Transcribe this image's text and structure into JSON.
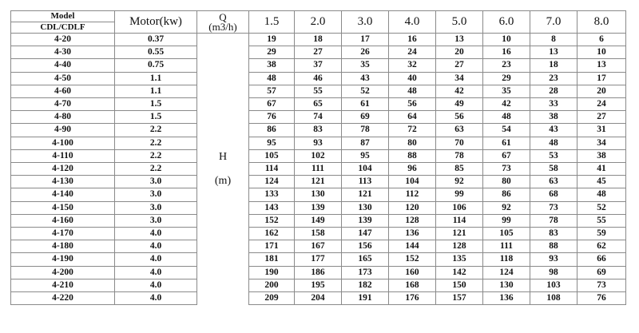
{
  "header": {
    "model_label": "Model",
    "series_label": "CDL/CDLF",
    "motor_label": "Motor(kw)",
    "q_label": "Q",
    "q_unit": "(m3/h)",
    "h_label": "H",
    "h_unit": "(m)",
    "flows": [
      "1.5",
      "2.0",
      "3.0",
      "4.0",
      "5.0",
      "6.0",
      "7.0",
      "8.0"
    ]
  },
  "rows": [
    {
      "model": "4-20",
      "motor": "0.37",
      "h": [
        "19",
        "18",
        "17",
        "16",
        "13",
        "10",
        "8",
        "6"
      ]
    },
    {
      "model": "4-30",
      "motor": "0.55",
      "h": [
        "29",
        "27",
        "26",
        "24",
        "20",
        "16",
        "13",
        "10"
      ]
    },
    {
      "model": "4-40",
      "motor": "0.75",
      "h": [
        "38",
        "37",
        "35",
        "32",
        "27",
        "23",
        "18",
        "13"
      ]
    },
    {
      "model": "4-50",
      "motor": "1.1",
      "h": [
        "48",
        "46",
        "43",
        "40",
        "34",
        "29",
        "23",
        "17"
      ]
    },
    {
      "model": "4-60",
      "motor": "1.1",
      "h": [
        "57",
        "55",
        "52",
        "48",
        "42",
        "35",
        "28",
        "20"
      ]
    },
    {
      "model": "4-70",
      "motor": "1.5",
      "h": [
        "67",
        "65",
        "61",
        "56",
        "49",
        "42",
        "33",
        "24"
      ]
    },
    {
      "model": "4-80",
      "motor": "1.5",
      "h": [
        "76",
        "74",
        "69",
        "64",
        "56",
        "48",
        "38",
        "27"
      ]
    },
    {
      "model": "4-90",
      "motor": "2.2",
      "h": [
        "86",
        "83",
        "78",
        "72",
        "63",
        "54",
        "43",
        "31"
      ]
    },
    {
      "model": "4-100",
      "motor": "2.2",
      "h": [
        "95",
        "93",
        "87",
        "80",
        "70",
        "61",
        "48",
        "34"
      ]
    },
    {
      "model": "4-110",
      "motor": "2.2",
      "h": [
        "105",
        "102",
        "95",
        "88",
        "78",
        "67",
        "53",
        "38"
      ]
    },
    {
      "model": "4-120",
      "motor": "2.2",
      "h": [
        "114",
        "111",
        "104",
        "96",
        "85",
        "73",
        "58",
        "41"
      ]
    },
    {
      "model": "4-130",
      "motor": "3.0",
      "h": [
        "124",
        "121",
        "113",
        "104",
        "92",
        "80",
        "63",
        "45"
      ]
    },
    {
      "model": "4-140",
      "motor": "3.0",
      "h": [
        "133",
        "130",
        "121",
        "112",
        "99",
        "86",
        "68",
        "48"
      ]
    },
    {
      "model": "4-150",
      "motor": "3.0",
      "h": [
        "143",
        "139",
        "130",
        "120",
        "106",
        "92",
        "73",
        "52"
      ]
    },
    {
      "model": "4-160",
      "motor": "3.0",
      "h": [
        "152",
        "149",
        "139",
        "128",
        "114",
        "99",
        "78",
        "55"
      ]
    },
    {
      "model": "4-170",
      "motor": "4.0",
      "h": [
        "162",
        "158",
        "147",
        "136",
        "121",
        "105",
        "83",
        "59"
      ]
    },
    {
      "model": "4-180",
      "motor": "4.0",
      "h": [
        "171",
        "167",
        "156",
        "144",
        "128",
        "111",
        "88",
        "62"
      ]
    },
    {
      "model": "4-190",
      "motor": "4.0",
      "h": [
        "181",
        "177",
        "165",
        "152",
        "135",
        "118",
        "93",
        "66"
      ]
    },
    {
      "model": "4-200",
      "motor": "4.0",
      "h": [
        "190",
        "186",
        "173",
        "160",
        "142",
        "124",
        "98",
        "69"
      ]
    },
    {
      "model": "4-210",
      "motor": "4.0",
      "h": [
        "200",
        "195",
        "182",
        "168",
        "150",
        "130",
        "103",
        "73"
      ]
    },
    {
      "model": "4-220",
      "motor": "4.0",
      "h": [
        "209",
        "204",
        "191",
        "176",
        "157",
        "136",
        "108",
        "76"
      ]
    }
  ]
}
